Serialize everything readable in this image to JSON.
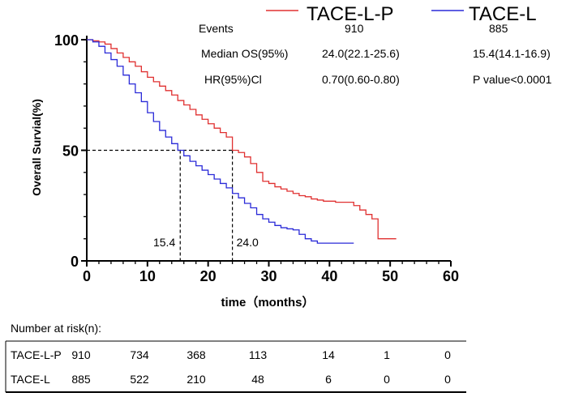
{
  "chart_data": {
    "type": "line",
    "xlabel": "time（months）",
    "ylabel": "Overall Survial(%)",
    "xlim": [
      0,
      60
    ],
    "ylim": [
      0,
      100
    ],
    "x_ticks": [
      "0",
      "10",
      "20",
      "30",
      "40",
      "50",
      "60"
    ],
    "y_ticks": [
      "0",
      "50",
      "100"
    ],
    "grid": false,
    "legend_position": "top",
    "series": [
      {
        "name": "TACE-L-P",
        "color": "#e03030",
        "x": [
          0,
          1,
          2,
          3,
          4,
          5,
          6,
          7,
          8,
          9,
          10,
          11,
          12,
          13,
          14,
          15,
          16,
          17,
          18,
          19,
          20,
          21,
          22,
          23,
          24,
          25,
          26,
          27,
          28,
          29,
          30,
          31,
          32,
          33,
          34,
          35,
          36,
          37,
          38,
          39,
          40,
          41,
          42,
          43,
          44,
          45,
          46,
          47,
          48,
          49,
          50,
          51
        ],
        "y": [
          100,
          99.5,
          99,
          98,
          96,
          94,
          92,
          90,
          88,
          85.5,
          83,
          81,
          79,
          77,
          75,
          72.5,
          70.5,
          68.5,
          66,
          64,
          62,
          60,
          58,
          56,
          50,
          49,
          47,
          44,
          40,
          36,
          35,
          33.5,
          32.5,
          31.5,
          30.5,
          29.5,
          29,
          28,
          27.5,
          27,
          27,
          26.5,
          26.5,
          26.5,
          25,
          23,
          21,
          19,
          10,
          10,
          10,
          10
        ]
      },
      {
        "name": "TACE-L",
        "color": "#2a2ad8",
        "x": [
          0,
          1,
          2,
          3,
          4,
          5,
          6,
          7,
          8,
          9,
          10,
          11,
          12,
          13,
          14,
          15,
          16,
          17,
          18,
          19,
          20,
          21,
          22,
          23,
          24,
          25,
          26,
          27,
          28,
          29,
          30,
          31,
          32,
          33,
          34,
          35,
          36,
          37,
          38,
          39,
          40,
          41,
          42,
          43,
          44
        ],
        "y": [
          100,
          99,
          97,
          94,
          91,
          88,
          84,
          80,
          76,
          72,
          67,
          63,
          59,
          56,
          53,
          50,
          47.5,
          45,
          43,
          41,
          39,
          37,
          35,
          33,
          30.5,
          28.5,
          26,
          24,
          21,
          19,
          17.5,
          16,
          15,
          14.5,
          14,
          12,
          10,
          9,
          8,
          8,
          8,
          8,
          8,
          8,
          8
        ]
      }
    ],
    "median_lines": [
      {
        "label": "15.4",
        "x": 15.4,
        "y": 50
      },
      {
        "label": "24.0",
        "x": 24.0,
        "y": 50
      }
    ]
  },
  "stats": {
    "events_label": "Events",
    "events_a": "910",
    "events_b": "885",
    "median_label": "Median OS(95%)",
    "median_a": "24.0(22.1-25.6)",
    "median_b": "15.4(14.1-16.9)",
    "hr_label": "HR(95%)Cl",
    "hr_value": "0.70(0.60-0.80)",
    "p_value": "P value<0.0001"
  },
  "risk_table": {
    "title": "Number at risk(n):",
    "rows": [
      {
        "name": "TACE-L-P",
        "values": [
          "910",
          "734",
          "368",
          "113",
          "14",
          "1",
          "0"
        ]
      },
      {
        "name": "TACE-L",
        "values": [
          "885",
          "522",
          "210",
          "48",
          "6",
          "0",
          "0"
        ]
      }
    ]
  }
}
